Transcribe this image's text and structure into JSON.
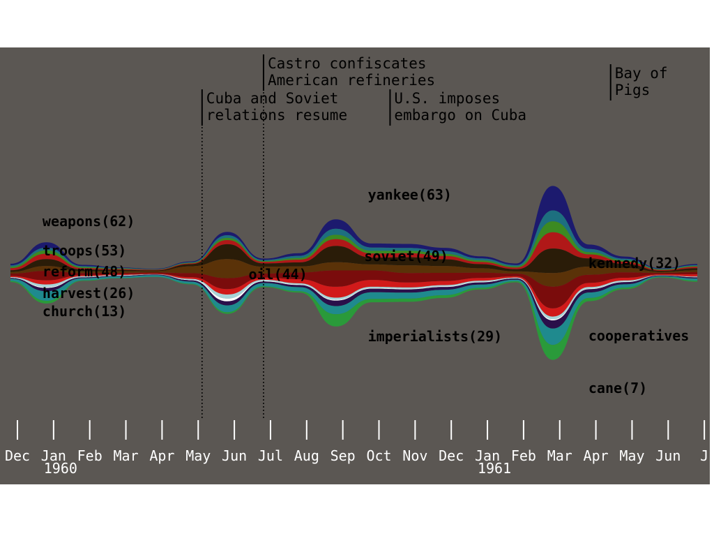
{
  "chart_data": {
    "type": "area",
    "style": "streamgraph",
    "month_labels": [
      "Dec",
      "Jan",
      "Feb",
      "Mar",
      "Apr",
      "May",
      "Jun",
      "Jul",
      "Aug",
      "Sep",
      "Oct",
      "Nov",
      "Dec",
      "Jan",
      "Feb",
      "Mar",
      "Apr",
      "May",
      "Jun",
      "J"
    ],
    "year_labels": [
      {
        "text": "1960",
        "month_index": 1
      },
      {
        "text": "1961",
        "month_index": 13
      }
    ],
    "events": [
      {
        "lines": [
          "Castro confiscates",
          "American refineries"
        ],
        "month_pos": 7.0,
        "line": "dotted"
      },
      {
        "lines": [
          "Cuba and Soviet",
          "relations resume"
        ],
        "month_pos": 5.3,
        "line": "dotted"
      },
      {
        "lines": [
          "U.S. imposes",
          "embargo on Cuba"
        ],
        "month_pos": 10.5,
        "line": "none"
      },
      {
        "lines": [
          "Bay of",
          "Pigs"
        ],
        "month_pos": 16.6,
        "line": "none"
      }
    ],
    "keywords": [
      {
        "label": "weapons(62)",
        "month_pos": 0.5,
        "row": "upper"
      },
      {
        "label": "troops(53)",
        "month_pos": 0.5,
        "row": "mid-upper"
      },
      {
        "label": "reform(48)",
        "month_pos": 0.5,
        "row": "center"
      },
      {
        "label": "harvest(26)",
        "month_pos": 0.5,
        "row": "mid-lower"
      },
      {
        "label": "church(13)",
        "month_pos": 0.5,
        "row": "lower"
      },
      {
        "label": "oil(44)",
        "month_pos": 6.2,
        "row": "center"
      },
      {
        "label": "yankee(63)",
        "month_pos": 9.5,
        "row": "upper"
      },
      {
        "label": "soviet(49)",
        "month_pos": 9.4,
        "row": "mid-upper"
      },
      {
        "label": "imperialists(29)",
        "month_pos": 9.5,
        "row": "lower"
      },
      {
        "label": "kennedy(32)",
        "month_pos": 15.6,
        "row": "mid-upper"
      },
      {
        "label": "cooperatives",
        "month_pos": 15.6,
        "row": "lower"
      },
      {
        "label": "cane(7)",
        "month_pos": 15.6,
        "row": "bottom"
      }
    ],
    "layers": [
      {
        "color": "#1c1a6e",
        "values": [
          0.6,
          2,
          0.5,
          0.2,
          0.2,
          0.3,
          1.2,
          0.5,
          1,
          3.5,
          1.5,
          1.5,
          1.2,
          0.8,
          0.6,
          9,
          1.6,
          0.8,
          0.2,
          0.4
        ]
      },
      {
        "color": "#1d6f7f",
        "values": [
          0.5,
          1,
          0.3,
          0.2,
          0.1,
          0.2,
          1,
          0.4,
          0.8,
          2.2,
          1.2,
          1,
          1,
          0.7,
          0.5,
          4,
          1.2,
          0.6,
          0.2,
          0.3
        ]
      },
      {
        "color": "#3c8a22",
        "values": [
          0.5,
          1.2,
          0.4,
          0.2,
          0.1,
          0.2,
          0.8,
          0.3,
          0.6,
          1.6,
          1,
          0.9,
          0.8,
          0.6,
          0.4,
          4,
          0.8,
          0.5,
          0.2,
          0.3
        ]
      },
      {
        "color": "#b01818",
        "values": [
          0.8,
          2,
          0.5,
          0.3,
          0.2,
          0.3,
          1.5,
          0.6,
          1,
          2.5,
          1.5,
          1.5,
          1.2,
          0.8,
          0.6,
          6,
          1.5,
          0.8,
          0.3,
          0.5
        ]
      },
      {
        "color": "#2a1c08",
        "values": [
          0.6,
          2.5,
          0.7,
          0.5,
          0.3,
          0.8,
          5.5,
          1.2,
          1.5,
          6,
          2.5,
          3,
          2.5,
          1.5,
          0.8,
          9,
          3,
          1.5,
          0.4,
          0.8
        ]
      },
      {
        "color": "#5a3208",
        "values": [
          0.6,
          1.8,
          0.6,
          0.6,
          0.5,
          2.5,
          7,
          2.5,
          2.2,
          3,
          2.2,
          2.8,
          2.5,
          1.6,
          0.8,
          5,
          3,
          1.6,
          0.4,
          0.7
        ]
      },
      {
        "color": "#7a0c0c",
        "values": [
          0.9,
          3.5,
          0.8,
          0.5,
          0.4,
          1.5,
          4,
          1.5,
          2.5,
          6,
          3.5,
          3.5,
          3,
          2,
          1,
          8,
          3,
          2,
          0.5,
          0.8
        ]
      },
      {
        "color": "#d11a1a",
        "values": [
          0.4,
          1.5,
          0.4,
          0.3,
          0.2,
          0.6,
          2,
          0.8,
          1.5,
          4,
          2.5,
          1.8,
          1.5,
          1,
          0.5,
          3,
          1.5,
          1,
          0.3,
          0.8
        ]
      },
      {
        "color": "#a8d4d8",
        "values": [
          0.2,
          1,
          0.3,
          0.2,
          0.1,
          0.3,
          1.5,
          0.4,
          0.4,
          0.8,
          0.5,
          0.5,
          0.5,
          0.4,
          0.2,
          1,
          0.6,
          0.4,
          0.1,
          0.2
        ]
      },
      {
        "color": "#ffffff",
        "values": [
          0.1,
          0.3,
          0.1,
          0.1,
          0.05,
          0.2,
          1,
          0.2,
          0.2,
          0.3,
          0.2,
          0.2,
          0.2,
          0.2,
          0.1,
          0.4,
          0.2,
          0.2,
          0.05,
          0.1
        ]
      },
      {
        "color": "#2a0f4a",
        "values": [
          0.3,
          1.2,
          0.3,
          0.2,
          0.2,
          0.5,
          1.5,
          0.6,
          0.8,
          2,
          1.3,
          1.2,
          1,
          0.8,
          0.4,
          3,
          1.2,
          0.8,
          0.2,
          0.4
        ]
      },
      {
        "color": "#1f8a8e",
        "values": [
          0.8,
          3.5,
          0.8,
          0.6,
          0.6,
          0.8,
          2.5,
          1.2,
          1.5,
          3,
          2.5,
          2.2,
          2,
          1.2,
          0.6,
          6,
          2,
          1.2,
          0.3,
          0.8
        ]
      },
      {
        "color": "#2a9a3a",
        "values": [
          0.4,
          1,
          0.2,
          0.1,
          0.1,
          0.2,
          0.6,
          0.3,
          0.5,
          4.5,
          1.2,
          1.2,
          1,
          0.6,
          0.4,
          5.5,
          1.2,
          0.6,
          0.2,
          0.4
        ]
      }
    ]
  }
}
